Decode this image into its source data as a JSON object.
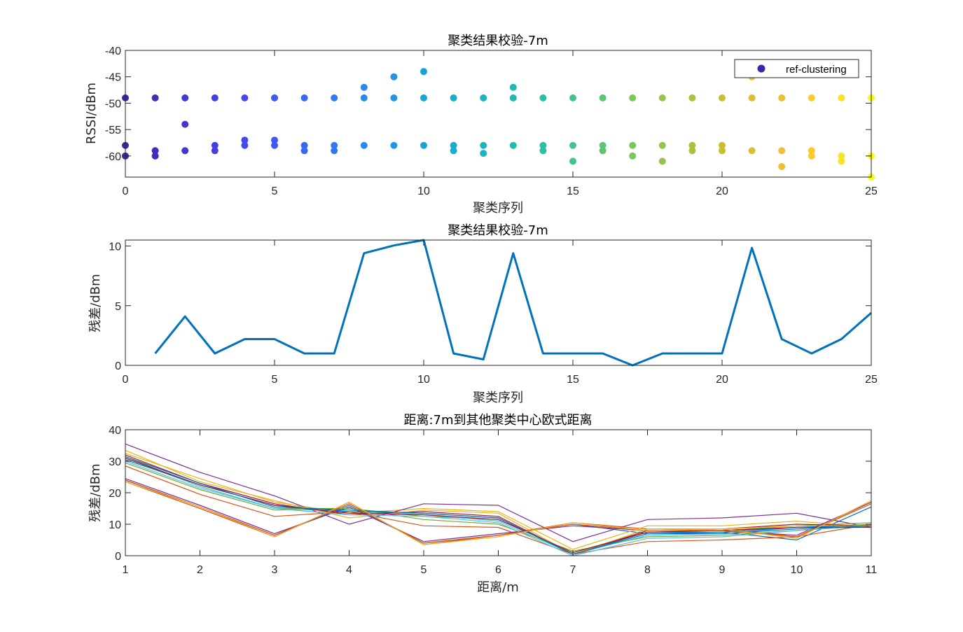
{
  "chart_data": [
    {
      "type": "scatter",
      "title": "聚类结果校验-7m",
      "xlabel": "聚类序列",
      "ylabel": "RSSI/dBm",
      "xlim": [
        0,
        25
      ],
      "ylim": [
        -64,
        -40
      ],
      "xticks": [
        0,
        5,
        10,
        15,
        20,
        25
      ],
      "yticks": [
        -60,
        -55,
        -50,
        -45,
        -40
      ],
      "xtick_labels": [
        "0",
        "5",
        "10",
        "15",
        "20",
        "25"
      ],
      "ytick_labels": [
        "-60",
        "-55",
        "-50",
        "-45",
        "-40"
      ],
      "colormap": "parula",
      "legend": {
        "label": "ref-clustering",
        "position": "top-right",
        "marker_color": "#3e26a8"
      },
      "points": [
        [
          0,
          -49
        ],
        [
          0,
          -58
        ],
        [
          0,
          -60
        ],
        [
          1,
          -49
        ],
        [
          1,
          -59
        ],
        [
          1,
          -60
        ],
        [
          2,
          -49
        ],
        [
          2,
          -54
        ],
        [
          2,
          -59
        ],
        [
          3,
          -49
        ],
        [
          3,
          -58
        ],
        [
          3,
          -59
        ],
        [
          4,
          -49
        ],
        [
          4,
          -57
        ],
        [
          4,
          -58
        ],
        [
          5,
          -49
        ],
        [
          5,
          -57
        ],
        [
          5,
          -58
        ],
        [
          6,
          -49
        ],
        [
          6,
          -58
        ],
        [
          6,
          -59
        ],
        [
          7,
          -49
        ],
        [
          7,
          -58
        ],
        [
          7,
          -59
        ],
        [
          8,
          -47
        ],
        [
          8,
          -49
        ],
        [
          8,
          -58
        ],
        [
          9,
          -45
        ],
        [
          9,
          -49
        ],
        [
          9,
          -58
        ],
        [
          10,
          -44
        ],
        [
          10,
          -49
        ],
        [
          10,
          -58
        ],
        [
          11,
          -49
        ],
        [
          11,
          -58
        ],
        [
          11,
          -59
        ],
        [
          12,
          -49
        ],
        [
          12,
          -58
        ],
        [
          12,
          -59.5
        ],
        [
          13,
          -47
        ],
        [
          13,
          -49
        ],
        [
          13,
          -58
        ],
        [
          14,
          -49
        ],
        [
          14,
          -58
        ],
        [
          14,
          -59
        ],
        [
          15,
          -49
        ],
        [
          15,
          -58
        ],
        [
          15,
          -61
        ],
        [
          16,
          -49
        ],
        [
          16,
          -58
        ],
        [
          16,
          -59
        ],
        [
          17,
          -49
        ],
        [
          17,
          -58
        ],
        [
          17,
          -60
        ],
        [
          18,
          -49
        ],
        [
          18,
          -58
        ],
        [
          18,
          -61
        ],
        [
          19,
          -49
        ],
        [
          19,
          -58
        ],
        [
          19,
          -59
        ],
        [
          20,
          -49
        ],
        [
          20,
          -58
        ],
        [
          20,
          -59
        ],
        [
          21,
          -45
        ],
        [
          21,
          -49
        ],
        [
          21,
          -59
        ],
        [
          22,
          -49
        ],
        [
          22,
          -59
        ],
        [
          22,
          -62
        ],
        [
          23,
          -49
        ],
        [
          23,
          -59
        ],
        [
          23,
          -60
        ],
        [
          24,
          -49
        ],
        [
          24,
          -60
        ],
        [
          24,
          -61
        ],
        [
          25,
          -49
        ],
        [
          25,
          -60
        ],
        [
          25,
          -64
        ]
      ]
    },
    {
      "type": "line",
      "title": "聚类结果校验-7m",
      "xlabel": "聚类序列",
      "ylabel": "残差/dBm",
      "xlim": [
        0,
        25
      ],
      "ylim": [
        0,
        10.5
      ],
      "xticks": [
        0,
        5,
        10,
        15,
        20,
        25
      ],
      "yticks": [
        0,
        5,
        10
      ],
      "xtick_labels": [
        "0",
        "5",
        "10",
        "15",
        "20",
        "25"
      ],
      "ytick_labels": [
        "0",
        "5",
        "10"
      ],
      "color": "#0072bd",
      "x": [
        1,
        2,
        3,
        4,
        5,
        6,
        7,
        8,
        9,
        10,
        11,
        12,
        13,
        14,
        15,
        16,
        17,
        18,
        19,
        20,
        21,
        22,
        23,
        24,
        25
      ],
      "values": [
        1,
        4.1,
        1,
        2.2,
        2.2,
        1,
        1,
        9.4,
        10.05,
        10.5,
        1,
        0.5,
        9.4,
        1,
        1,
        1,
        0,
        1,
        1,
        1,
        9.85,
        2.2,
        1,
        2.2,
        4.4
      ]
    },
    {
      "type": "line",
      "title": "距离:7m到其他聚类中心欧式距离",
      "xlabel": "距离/m",
      "ylabel": "残差/dBm",
      "xlim": [
        1,
        11
      ],
      "ylim": [
        0,
        40
      ],
      "xticks": [
        1,
        2,
        3,
        4,
        5,
        6,
        7,
        8,
        9,
        10,
        11
      ],
      "yticks": [
        0,
        10,
        20,
        30,
        40
      ],
      "xtick_labels": [
        "1",
        "2",
        "3",
        "4",
        "5",
        "6",
        "7",
        "8",
        "9",
        "10",
        "11"
      ],
      "ytick_labels": [
        "0",
        "10",
        "20",
        "30",
        "40"
      ],
      "x": [
        1,
        2,
        3,
        4,
        5,
        6,
        7,
        8,
        9,
        10,
        11
      ],
      "series": [
        {
          "color": "#0072bd",
          "values": [
            24,
            15.5,
            6.5,
            16,
            4,
            6.5,
            10,
            7,
            7.5,
            5,
            15.5
          ]
        },
        {
          "color": "#d95319",
          "values": [
            23.5,
            15,
            6,
            17,
            3.5,
            6.5,
            10.5,
            8.5,
            8.5,
            6,
            17
          ]
        },
        {
          "color": "#edb120",
          "values": [
            32.5,
            24.5,
            17,
            13.5,
            15,
            14,
            2,
            9.5,
            9.5,
            11,
            9
          ]
        },
        {
          "color": "#7e2f8e",
          "values": [
            35.5,
            26.5,
            19,
            10,
            16.5,
            16,
            4.5,
            11.5,
            12,
            13.5,
            9
          ]
        },
        {
          "color": "#77ac30",
          "values": [
            31.5,
            22,
            15,
            15,
            12.5,
            11.5,
            1,
            7.5,
            8,
            9.5,
            10.5
          ]
        },
        {
          "color": "#4dbeee",
          "values": [
            31,
            22,
            15,
            14,
            13,
            11,
            0.5,
            6.5,
            7,
            9,
            10
          ]
        },
        {
          "color": "#a2142f",
          "values": [
            32,
            23,
            16.5,
            13,
            14,
            12.5,
            0.5,
            8,
            8.5,
            10,
            9.5
          ]
        },
        {
          "color": "#0072bd",
          "values": [
            30.5,
            22.5,
            16,
            14,
            13.5,
            12,
            0.5,
            7.5,
            7.5,
            9,
            9.5
          ]
        },
        {
          "color": "#d95319",
          "values": [
            28.5,
            19.5,
            12.5,
            14,
            9.5,
            9,
            0.5,
            4.5,
            5,
            6,
            10
          ]
        },
        {
          "color": "#edb120",
          "values": [
            33.5,
            23.5,
            17.5,
            12,
            14.5,
            13.5,
            0.5,
            8.5,
            8.5,
            9.5,
            9.5
          ]
        },
        {
          "color": "#7e2f8e",
          "values": [
            24.5,
            16,
            7,
            15.5,
            4.5,
            7,
            9.5,
            8,
            8,
            6.5,
            17
          ]
        },
        {
          "color": "#77ac30",
          "values": [
            29.5,
            21,
            14.5,
            15,
            11.5,
            10,
            1.5,
            6,
            6.5,
            8,
            10
          ]
        },
        {
          "color": "#4dbeee",
          "values": [
            30,
            21.5,
            15,
            13,
            12.5,
            10.5,
            0,
            5.5,
            6,
            8,
            9.5
          ]
        },
        {
          "color": "#a2142f",
          "values": [
            31,
            22.5,
            16,
            13.5,
            13,
            11.5,
            1,
            7.5,
            8,
            9,
            9
          ]
        },
        {
          "color": "#0072bd",
          "values": [
            31.5,
            23,
            15.5,
            14.5,
            13.5,
            12,
            0.5,
            7,
            7,
            8.5,
            9.5
          ]
        },
        {
          "color": "#d95319",
          "values": [
            24,
            15.5,
            6.5,
            16.5,
            4,
            6.5,
            10,
            8,
            8,
            6,
            16.5
          ]
        },
        {
          "color": "#edb120",
          "values": [
            23.5,
            15.5,
            6,
            17,
            3.5,
            6,
            10.5,
            8,
            8.5,
            5.5,
            17.5
          ]
        }
      ]
    }
  ]
}
